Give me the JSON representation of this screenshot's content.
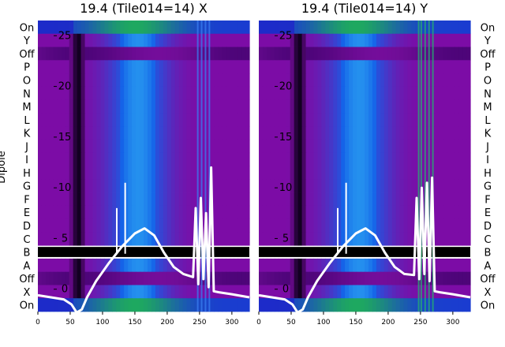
{
  "chart_data": [
    {
      "type": "heatmap",
      "title": "19.4 (Tile014=14) X",
      "ylabel": "Dipole",
      "xlim": [
        0,
        327
      ],
      "xticks": [
        "0",
        "50",
        "100",
        "150",
        "200",
        "250",
        "300"
      ],
      "overlay_yticks": [
        "0",
        "5",
        "10",
        "15",
        "20",
        "25"
      ],
      "overlay_ylim": [
        -2.2,
        26.5
      ],
      "rows": [
        "On",
        "Y",
        "Off",
        "P",
        "O",
        "N",
        "M",
        "L",
        "K",
        "J",
        "I",
        "H",
        "G",
        "F",
        "E",
        "D",
        "C",
        "B",
        "A",
        "Off",
        "X",
        "On"
      ],
      "overlay_series": {
        "x": [
          0,
          20,
          40,
          52,
          60,
          68,
          76,
          90,
          110,
          130,
          150,
          165,
          180,
          195,
          210,
          225,
          240,
          244,
          248,
          252,
          256,
          260,
          264,
          268,
          272,
          280,
          300,
          327
        ],
        "y": [
          -0.6,
          -0.8,
          -1.0,
          -1.5,
          -2.3,
          -2.0,
          -0.8,
          0.8,
          2.6,
          4.2,
          5.5,
          6.0,
          5.3,
          3.6,
          2.2,
          1.5,
          1.2,
          8.0,
          0.5,
          9.0,
          1.0,
          7.5,
          0.2,
          12.0,
          -0.2,
          -0.3,
          -0.5,
          -0.8
        ]
      },
      "spikes": [
        {
          "x": 122,
          "y": 8.0
        },
        {
          "x": 135,
          "y": 10.5
        }
      ]
    },
    {
      "type": "heatmap",
      "title": "19.4 (Tile014=14) Y",
      "xlim": [
        0,
        327
      ],
      "xticks": [
        "0",
        "50",
        "100",
        "150",
        "200",
        "250",
        "300"
      ],
      "overlay_yticks": [
        "0",
        "5",
        "10",
        "15",
        "20",
        "25"
      ],
      "overlay_ylim": [
        -2.2,
        26.5
      ],
      "rows": [
        "On",
        "Y",
        "Off",
        "P",
        "O",
        "N",
        "M",
        "L",
        "K",
        "J",
        "I",
        "H",
        "G",
        "F",
        "E",
        "D",
        "C",
        "B",
        "A",
        "Off",
        "X",
        "On"
      ],
      "overlay_series": {
        "x": [
          0,
          20,
          40,
          52,
          60,
          68,
          76,
          90,
          110,
          130,
          150,
          165,
          180,
          195,
          210,
          225,
          240,
          244,
          248,
          252,
          256,
          260,
          264,
          268,
          272,
          280,
          300,
          327
        ],
        "y": [
          -0.6,
          -0.8,
          -1.0,
          -1.5,
          -2.3,
          -2.0,
          -0.8,
          0.8,
          2.6,
          4.2,
          5.5,
          6.0,
          5.3,
          3.6,
          2.2,
          1.5,
          1.4,
          9.0,
          1.0,
          10.0,
          1.5,
          10.5,
          0.8,
          11.0,
          -0.2,
          -0.3,
          -0.5,
          -0.8
        ]
      },
      "spikes": [
        {
          "x": 122,
          "y": 8.0
        },
        {
          "x": 135,
          "y": 10.5
        }
      ]
    }
  ]
}
